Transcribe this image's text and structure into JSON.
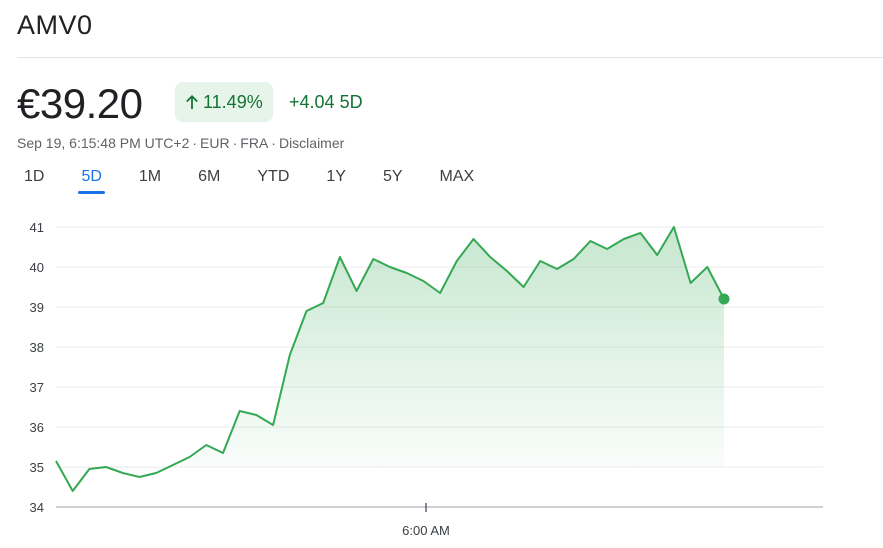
{
  "header": {
    "ticker": "AMV0"
  },
  "quote": {
    "price": "€39.20",
    "change_percent": "11.49%",
    "change_value": "+4.04",
    "change_period": "5D",
    "timestamp": "Sep 19, 6:15:48 PM UTC+2",
    "currency": "EUR",
    "exchange": "FRA",
    "disclaimer": "Disclaimer"
  },
  "colors": {
    "up_green": "#137333",
    "line": "#34a853",
    "accent": "#1a73e8"
  },
  "tabs": [
    {
      "label": "1D",
      "active": false
    },
    {
      "label": "5D",
      "active": true
    },
    {
      "label": "1M",
      "active": false
    },
    {
      "label": "6M",
      "active": false
    },
    {
      "label": "YTD",
      "active": false
    },
    {
      "label": "1Y",
      "active": false
    },
    {
      "label": "5Y",
      "active": false
    },
    {
      "label": "MAX",
      "active": false
    }
  ],
  "chart_data": {
    "type": "area",
    "ylim": [
      34,
      41
    ],
    "y_ticks": [
      34,
      35,
      36,
      37,
      38,
      39,
      40,
      41
    ],
    "x_tick_labels": [
      "6:00 AM"
    ],
    "grid": true,
    "series": [
      {
        "values": [
          35.15,
          34.4,
          34.95,
          35.0,
          34.85,
          34.75,
          34.85,
          35.05,
          35.25,
          35.55,
          35.35,
          36.4,
          36.3,
          36.05,
          37.8,
          38.9,
          39.1,
          40.25,
          39.4,
          40.2,
          40.0,
          39.85,
          39.65,
          39.35,
          40.15,
          40.7,
          40.25,
          39.9,
          39.5,
          40.15,
          39.95,
          40.2,
          40.65,
          40.45,
          40.7,
          40.85,
          40.3,
          41.0,
          39.6,
          40.0,
          39.2
        ],
        "color": "#34a853"
      }
    ]
  }
}
